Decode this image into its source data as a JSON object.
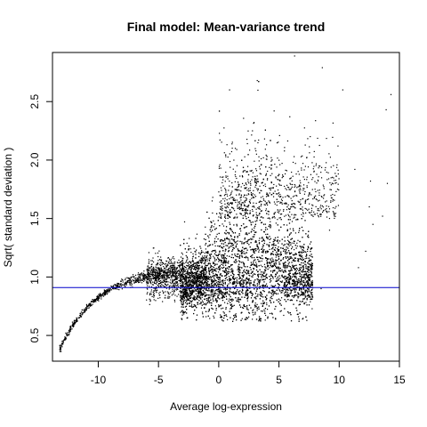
{
  "chart_data": {
    "type": "scatter",
    "title": "Final model: Mean-variance trend",
    "xlabel": "Average log-expression",
    "ylabel": "Sqrt( standard deviation )",
    "xlim": [
      -13.8,
      15.0
    ],
    "ylim": [
      0.28,
      2.92
    ],
    "x_ticks": [
      -10,
      -5,
      0,
      5,
      10,
      15
    ],
    "y_ticks": [
      0.5,
      1.0,
      1.5,
      2.0,
      2.5
    ],
    "x_tick_labels": [
      "-10",
      "-5",
      "0",
      "5",
      "10",
      "15"
    ],
    "y_tick_labels": [
      "0.5",
      "1.0",
      "1.5",
      "2.0",
      "2.5"
    ],
    "grid": false,
    "legend": "none",
    "point_color": "#000000",
    "reference_line": {
      "orientation": "horizontal",
      "y": 0.91,
      "color": "#0000cc"
    },
    "series": [
      {
        "values": [
          [
            -13.2,
            0.38
          ],
          [
            -13.0,
            0.45
          ],
          [
            -12.7,
            0.52
          ],
          [
            -12.3,
            0.58
          ],
          [
            -11.8,
            0.65
          ],
          [
            -11.2,
            0.72
          ],
          [
            -10.5,
            0.79
          ],
          [
            -9.8,
            0.85
          ],
          [
            -9.0,
            0.9
          ],
          [
            -8.2,
            0.94
          ],
          [
            -7.4,
            0.98
          ],
          [
            -6.6,
            1.02
          ],
          [
            -5.8,
            1.06
          ],
          [
            -5.0,
            1.08
          ],
          [
            -4.2,
            1.04
          ],
          [
            -3.5,
            0.98
          ],
          [
            -2.5,
            0.9
          ],
          [
            -1.5,
            0.85
          ],
          [
            -0.5,
            0.83
          ],
          [
            0.5,
            0.85
          ],
          [
            1.5,
            0.95
          ],
          [
            2.5,
            1.05
          ],
          [
            3.5,
            1.1
          ],
          [
            4.5,
            1.05
          ],
          [
            5.5,
            0.98
          ],
          [
            6.5,
            0.92
          ],
          [
            7.5,
            0.88
          ],
          [
            8.5,
            0.9
          ],
          [
            6.3,
            2.89
          ],
          [
            8.6,
            2.79
          ],
          [
            14.3,
            2.56
          ],
          [
            13.9,
            2.43
          ],
          [
            10.3,
            2.6
          ],
          [
            3.2,
            2.68
          ],
          [
            0.9,
            2.6
          ],
          [
            5.9,
            2.37
          ],
          [
            4.6,
            2.42
          ],
          [
            2.8,
            2.25
          ],
          [
            9.9,
            2.12
          ],
          [
            11.3,
            1.92
          ],
          [
            12.6,
            1.82
          ],
          [
            12.5,
            1.6
          ],
          [
            13.6,
            1.52
          ],
          [
            12.8,
            1.45
          ],
          [
            14.0,
            1.8
          ],
          [
            12.2,
            1.22
          ],
          [
            11.6,
            1.08
          ],
          [
            9.2,
            1.4
          ]
        ]
      }
    ]
  }
}
